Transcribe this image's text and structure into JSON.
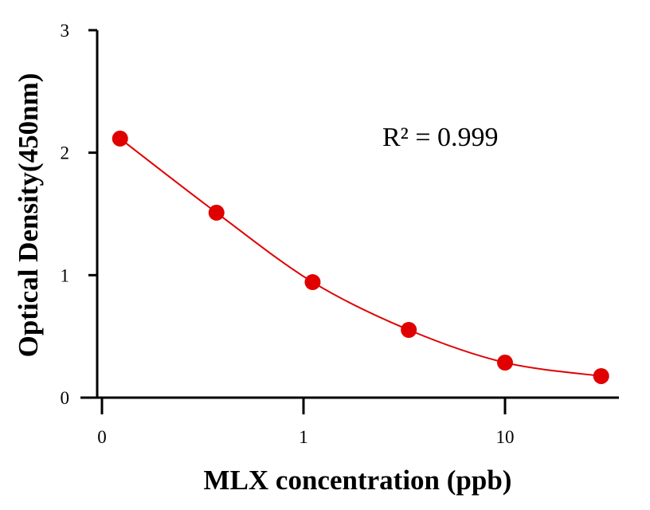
{
  "chart_data": {
    "type": "scatter",
    "xlabel": "MLX concentration (ppb)",
    "ylabel": "Optical Density(450nm)",
    "x_scale": "log",
    "xlim": [
      0.1,
      50
    ],
    "ylim": [
      0,
      3
    ],
    "x_ticks": [
      {
        "value": 0.1,
        "label": "0"
      },
      {
        "value": 1,
        "label": "1"
      },
      {
        "value": 10,
        "label": "10"
      }
    ],
    "y_ticks": [
      {
        "value": 0,
        "label": "0"
      },
      {
        "value": 1,
        "label": "1"
      },
      {
        "value": 2,
        "label": "2"
      },
      {
        "value": 3,
        "label": "3"
      }
    ],
    "grid": false,
    "annotation": "R² = 0.999",
    "color": "#e00000",
    "points": [
      {
        "x": 0.123,
        "y": 2.115
      },
      {
        "x": 0.37,
        "y": 1.51
      },
      {
        "x": 1.11,
        "y": 0.943
      },
      {
        "x": 3.33,
        "y": 0.553
      },
      {
        "x": 10,
        "y": 0.286
      },
      {
        "x": 30,
        "y": 0.176
      }
    ],
    "fit": "smooth curve through points"
  }
}
